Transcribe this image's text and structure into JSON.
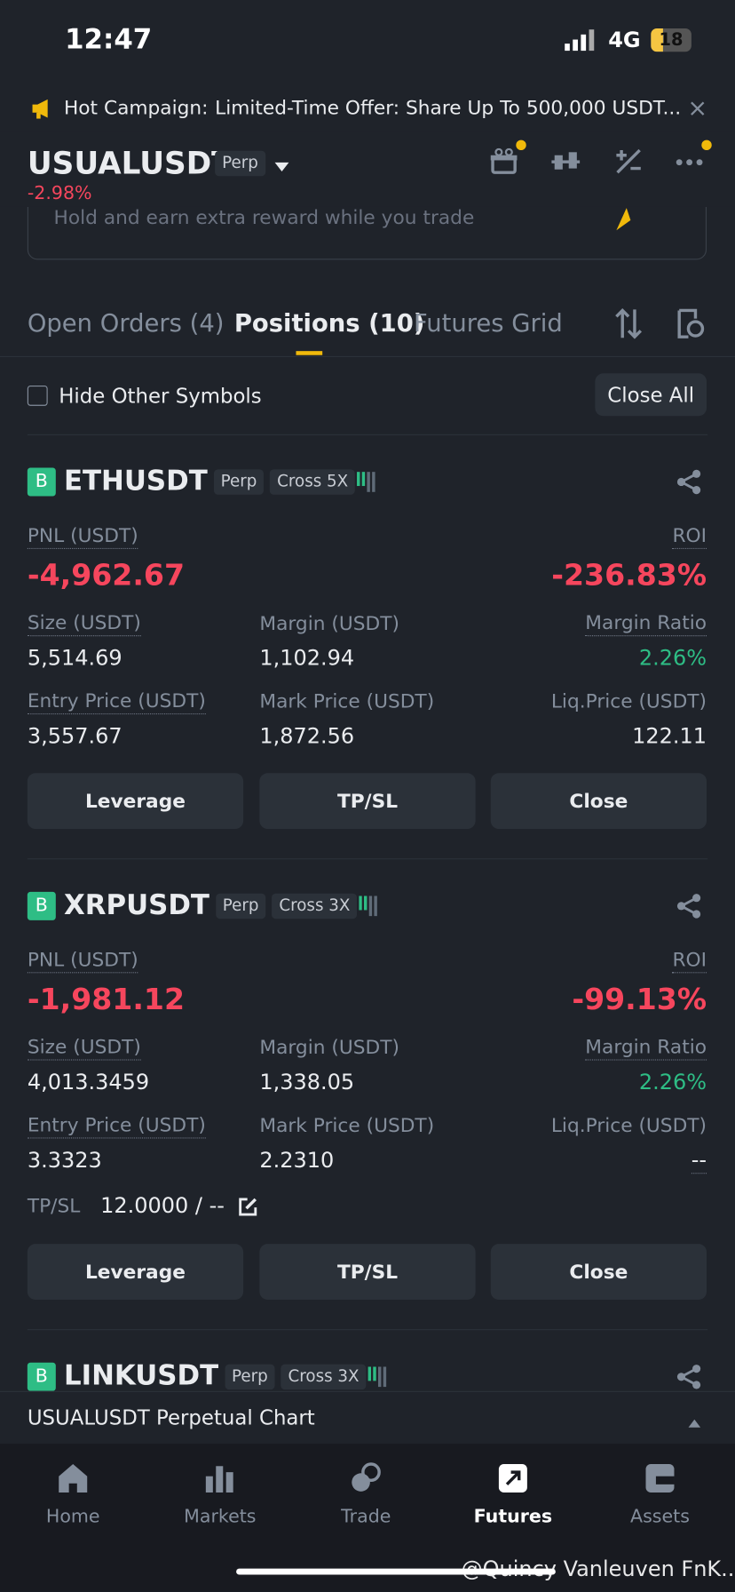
{
  "status_bar": {
    "time": "12:47",
    "network": "4G",
    "battery": "18"
  },
  "banner": {
    "label": "Hot Campaign:",
    "text": "Limited-Time Offer: Share Up To 500,000 USDT..."
  },
  "header": {
    "symbol": "USUALUSDT",
    "type": "Perp",
    "change": "-2.98%"
  },
  "promo": {
    "text": "Hold and earn extra reward while you trade"
  },
  "tabs": [
    "Open Orders (4)",
    "Positions (10)",
    "Futures Grid"
  ],
  "filter": {
    "label": "Hide Other Symbols",
    "button": "Close All"
  },
  "positions": [
    {
      "side": "B",
      "symbol": "ETHUSDT",
      "type": "Perp",
      "margin_mode": "Cross 5X",
      "pnl_label": "PNL (USDT)",
      "pnl": "-4,962.67",
      "roi_label": "ROI",
      "roi": "-236.83%",
      "fields": [
        {
          "label": "Size (USDT)",
          "value": "5,514.69"
        },
        {
          "label": "Margin (USDT)",
          "value": "1,102.94"
        },
        {
          "label": "Margin Ratio",
          "value": "2.26%"
        },
        {
          "label": "Entry Price (USDT)",
          "value": "3,557.67"
        },
        {
          "label": "Mark Price (USDT)",
          "value": "1,872.56"
        },
        {
          "label": "Liq.Price (USDT)",
          "value": "122.11"
        }
      ],
      "buttons": [
        "Leverage",
        "TP/SL",
        "Close"
      ]
    },
    {
      "side": "B",
      "symbol": "XRPUSDT",
      "type": "Perp",
      "margin_mode": "Cross 3X",
      "pnl_label": "PNL (USDT)",
      "pnl": "-1,981.12",
      "roi_label": "ROI",
      "roi": "-99.13%",
      "fields": [
        {
          "label": "Size (USDT)",
          "value": "4,013.3459"
        },
        {
          "label": "Margin (USDT)",
          "value": "1,338.05"
        },
        {
          "label": "Margin Ratio",
          "value": "2.26%"
        },
        {
          "label": "Entry Price (USDT)",
          "value": "3.3323"
        },
        {
          "label": "Mark Price (USDT)",
          "value": "2.2310"
        },
        {
          "label": "Liq.Price (USDT)",
          "value": "--"
        }
      ],
      "tpsl": {
        "label": "TP/SL",
        "value": "12.0000 / --"
      },
      "buttons": [
        "Leverage",
        "TP/SL",
        "Close"
      ]
    },
    {
      "side": "B",
      "symbol": "LINKUSDT",
      "type": "Perp",
      "margin_mode": "Cross 3X"
    }
  ],
  "bottom_panel": {
    "title": "USUALUSDT Perpetual  Chart"
  },
  "nav": [
    "Home",
    "Markets",
    "Trade",
    "Futures",
    "Assets"
  ],
  "watermark": "@Quincy Vanleuven FnK..."
}
